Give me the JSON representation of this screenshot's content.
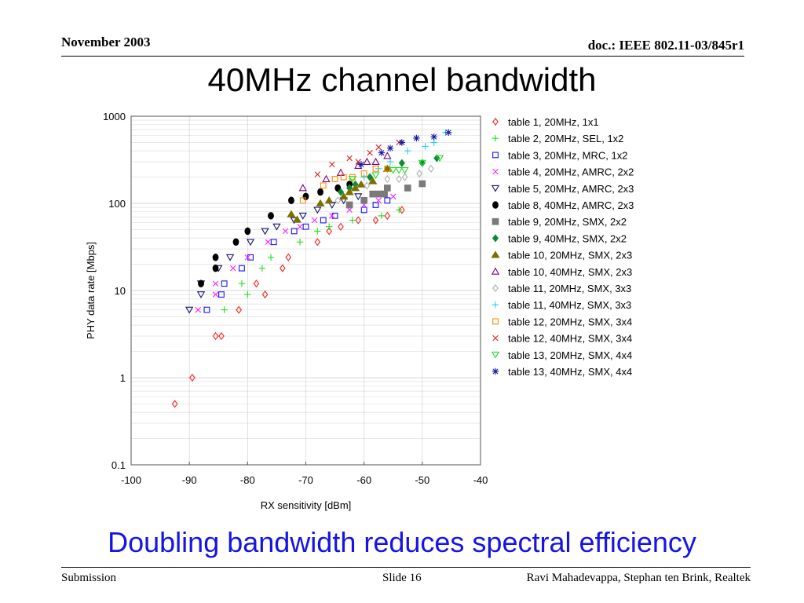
{
  "header": {
    "date": "November 2003",
    "doc": "doc.: IEEE 802.11-03/845r1"
  },
  "title": "40MHz channel bandwidth",
  "subtitle": "Doubling bandwidth reduces spectral efficiency",
  "footer": {
    "left": "Submission",
    "center": "Slide 16",
    "right": "Ravi Mahadevappa, Stephan ten Brink, Realtek"
  },
  "chart_data": {
    "type": "scatter",
    "xlabel": "RX sensitivity [dBm]",
    "ylabel": "PHY data rate [Mbps]",
    "xlim": [
      -100,
      -40
    ],
    "ylim": [
      0.1,
      1000
    ],
    "yscale": "log",
    "xticks": [
      "-100",
      "-90",
      "-80",
      "-70",
      "-60",
      "-50",
      "-40"
    ],
    "yticks": [
      "0.1",
      "1",
      "10",
      "100",
      "1000"
    ],
    "grid": true,
    "legend_position": "right",
    "series": [
      {
        "name": "table 1, 20MHz, 1x1",
        "marker": "diamond",
        "color": "#ff2020",
        "x": [
          -92.5,
          -89.5,
          -85.5,
          -84.5,
          -81.5,
          -78.5,
          -77,
          -74,
          -73,
          -68,
          -66,
          -64,
          -61,
          -58,
          -56,
          -53.5
        ],
        "y": [
          0.5,
          1,
          3,
          3,
          6,
          12,
          9,
          18,
          24,
          36,
          48,
          54,
          64,
          64,
          72,
          84
        ]
      },
      {
        "name": "table 2, 20MHz, SEL, 1x2",
        "marker": "plus",
        "color": "#20e020",
        "x": [
          -84,
          -80,
          -81,
          -77.5,
          -76,
          -71,
          -68,
          -66,
          -62,
          -57,
          -54
        ],
        "y": [
          6,
          9,
          12,
          18,
          24,
          36,
          48,
          54,
          64,
          72,
          84
        ]
      },
      {
        "name": "table 3, 20MHz, MRC, 1x2",
        "marker": "square",
        "color": "#1414ff",
        "x": [
          -87,
          -84.5,
          -84,
          -81,
          -79.5,
          -75.5,
          -72,
          -70,
          -67,
          -65,
          -60,
          -58,
          -56
        ],
        "y": [
          6,
          9,
          12,
          18,
          24,
          36,
          48,
          54,
          64,
          72,
          84,
          96,
          108
        ]
      },
      {
        "name": "table 4, 20MHz, AMRC, 2x2",
        "marker": "x",
        "color": "#ff20ff",
        "x": [
          -88.5,
          -85.5,
          -85.5,
          -82.5,
          -80,
          -76.5,
          -73.5,
          -71,
          -68.5,
          -65.5,
          -62.5,
          -60,
          -57.5,
          -55
        ],
        "y": [
          6,
          9,
          12,
          18,
          24,
          36,
          48,
          54,
          64,
          72,
          84,
          96,
          108,
          120
        ]
      },
      {
        "name": "table 5, 20MHz, AMRC, 2x3",
        "marker": "triangle-down",
        "color": "#14146e",
        "x": [
          -90,
          -88,
          -88,
          -85,
          -83,
          -79.5,
          -77,
          -75,
          -72,
          -70.5,
          -68,
          -65.5,
          -63.5,
          -61
        ],
        "y": [
          6,
          9,
          12,
          18,
          24,
          36,
          48,
          54,
          64,
          72,
          84,
          96,
          108,
          120
        ]
      },
      {
        "name": "table 8, 40MHz, AMRC, 2x3",
        "marker": "circle",
        "color": "#000000",
        "x": [
          -88,
          -85.5,
          -85.5,
          -82,
          -80,
          -76,
          -72.5,
          -70,
          -67.5,
          -64.5,
          -62.5
        ],
        "y": [
          12,
          18,
          24,
          36,
          48,
          72,
          108,
          120,
          135,
          150,
          165
        ]
      },
      {
        "name": "table 9, 20MHz, SMX, 2x2",
        "marker": "square-filled",
        "color": "#7a7a7a",
        "x": [
          -62.5,
          -60,
          -58.5,
          -57.5,
          -56.5,
          -56,
          -52.5,
          -50
        ],
        "y": [
          96,
          108,
          128,
          128,
          128,
          150,
          150,
          168
        ]
      },
      {
        "name": "table 9, 40MHz, SMX, 2x2",
        "marker": "diamond-filled",
        "color": "#0a8a3a",
        "x": [
          -64,
          -62.5,
          -61.5,
          -59,
          -56,
          -53.5,
          -50,
          -47.5
        ],
        "y": [
          135,
          150,
          165,
          200,
          250,
          290,
          290,
          330
        ]
      },
      {
        "name": "table 10, 20MHz, SMX, 2x3",
        "marker": "triangle-up",
        "color": "#7a7000",
        "x": [
          -72.5,
          -71.5,
          -67.5,
          -66,
          -63.5,
          -62.5,
          -61.5,
          -60.5,
          -58.5,
          -56
        ],
        "y": [
          75,
          65,
          100,
          108,
          120,
          135,
          150,
          165,
          180,
          250
        ]
      },
      {
        "name": "table 10, 40MHz, SMX, 2x3",
        "marker": "triangle-up-open",
        "color": "#7a007a",
        "x": [
          -70.5,
          -66.5,
          -64,
          -61,
          -59.5,
          -58,
          -56
        ],
        "y": [
          150,
          190,
          225,
          270,
          300,
          300,
          350
        ]
      },
      {
        "name": "table 11, 20MHz, SMX, 3x3",
        "marker": "diamond-open",
        "color": "#b0b0b0",
        "x": [
          -64.5,
          -59.5,
          -56,
          -54,
          -53,
          -50.5,
          -48.5
        ],
        "y": [
          108,
          160,
          190,
          190,
          200,
          220,
          250
        ]
      },
      {
        "name": "table 11, 40MHz, SMX, 3x3",
        "marker": "plus",
        "color": "#20d0f0",
        "x": [
          -60,
          -57.5,
          -55.5,
          -52.5,
          -49.5,
          -48,
          -46
        ],
        "y": [
          200,
          250,
          300,
          400,
          450,
          500,
          650
        ]
      },
      {
        "name": "table 12, 20MHz, SMX, 3x4",
        "marker": "square",
        "color": "#ff8c00",
        "x": [
          -70.5,
          -67,
          -65,
          -63.5,
          -62,
          -60,
          -58,
          -56
        ],
        "y": [
          108,
          160,
          190,
          200,
          200,
          220,
          250,
          250
        ]
      },
      {
        "name": "table 12, 40MHz, SMX, 3x4",
        "marker": "x",
        "color": "#e02020",
        "x": [
          -68,
          -65.5,
          -62.5,
          -61,
          -59,
          -57.5,
          -54
        ],
        "y": [
          215,
          280,
          330,
          300,
          380,
          440,
          500
        ]
      },
      {
        "name": "table 13, 20MHz, SMX, 4x4",
        "marker": "triangle-down",
        "color": "#20e020",
        "x": [
          -62,
          -58,
          -55,
          -54,
          -53,
          -50,
          -47
        ],
        "y": [
          190,
          210,
          240,
          240,
          240,
          290,
          330
        ]
      },
      {
        "name": "table 13, 40MHz, SMX, 4x4",
        "marker": "asterisk",
        "color": "#1414aa",
        "x": [
          -60.5,
          -57,
          -55.5,
          -53.5,
          -51,
          -48,
          -45.5
        ],
        "y": [
          280,
          380,
          430,
          500,
          560,
          580,
          650
        ]
      }
    ]
  }
}
